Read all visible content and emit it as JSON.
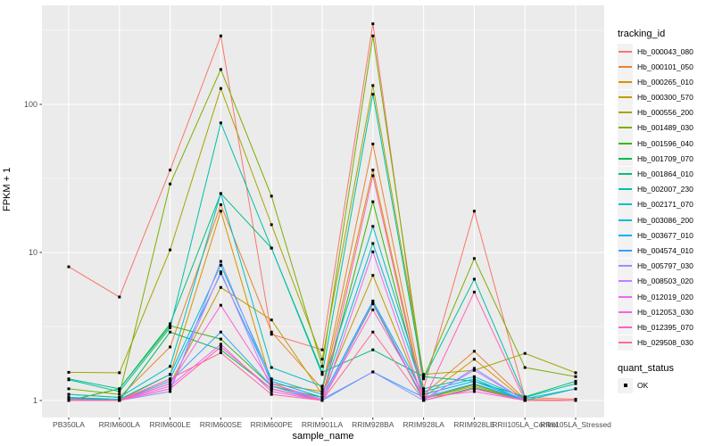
{
  "chart_data": {
    "type": "line",
    "xlabel": "sample_name",
    "ylabel": "FPKM + 1",
    "y_scale": "log10",
    "ylim": [
      0.74,
      480
    ],
    "grid": true,
    "panel_bg": "#EBEBEB",
    "grid_color": "#FFFFFF",
    "marker_color": "#000000",
    "tick_label_color": "#4D4D4D",
    "y_ticks": [
      {
        "label": "1",
        "value": 1
      },
      {
        "label": "10",
        "value": 10
      },
      {
        "label": "100",
        "value": 100
      }
    ],
    "y_minor_values": [
      3.162,
      31.62,
      316.2
    ],
    "categories": [
      "PB350LA",
      "RRIM600LA",
      "RRIM600LE",
      "RRIM600SE",
      "RRIM600PE",
      "RRIM901LA",
      "RRIM928BA",
      "RRIM928LA",
      "RRIM928LE",
      "RRII105LA_Control",
      "RRII105LA_Stressed"
    ],
    "legend_title": "tracking_id",
    "legend_position": "right",
    "point_legend": {
      "title": "quant_status",
      "items": [
        {
          "label": "OK"
        }
      ]
    },
    "series": [
      {
        "name": "Hb_000043_080",
        "color": "#F8766D",
        "values": [
          8,
          5,
          36,
          290,
          2.8,
          2.2,
          350,
          1.2,
          19,
          1.05,
          1.02
        ]
      },
      {
        "name": "Hb_000101_050",
        "color": "#EA8331",
        "values": [
          1.1,
          1.05,
          2.3,
          21,
          2.9,
          1.2,
          54,
          1.1,
          2.15,
          1.02,
          1.0
        ]
      },
      {
        "name": "Hb_000265_010",
        "color": "#D89000",
        "values": [
          1.05,
          1.0,
          1.5,
          19,
          1.3,
          1.15,
          36,
          1.05,
          1.9,
          1.0,
          1.0
        ]
      },
      {
        "name": "Hb_000300_570",
        "color": "#C09B00",
        "values": [
          1.0,
          1.0,
          1.3,
          5.8,
          3.5,
          1.1,
          7,
          1.03,
          1.25,
          1.0,
          1.0
        ]
      },
      {
        "name": "Hb_000556_200",
        "color": "#A3A500",
        "values": [
          1.55,
          1.54,
          10.4,
          128,
          15.4,
          1.9,
          134,
          1.5,
          1.6,
          2.08,
          1.54
        ]
      },
      {
        "name": "Hb_001489_030",
        "color": "#7CAE00",
        "values": [
          1.2,
          1.1,
          29,
          172,
          24,
          1.7,
          290,
          1.42,
          9.1,
          1.67,
          1.45
        ]
      },
      {
        "name": "Hb_001596_040",
        "color": "#39B600",
        "values": [
          1.0,
          1.2,
          3.2,
          2.6,
          1.25,
          1.05,
          22,
          1.03,
          1.28,
          1.0,
          1.0
        ]
      },
      {
        "name": "Hb_001709_070",
        "color": "#00BB4E",
        "values": [
          1.05,
          1.0,
          2.9,
          2.2,
          1.2,
          1.0,
          4.5,
          1.0,
          1.22,
          1.0,
          1.0
        ]
      },
      {
        "name": "Hb_001864_010",
        "color": "#00BF7D",
        "values": [
          1.4,
          1.2,
          3.3,
          25,
          10.7,
          1.55,
          2.2,
          1.45,
          1.35,
          1.06,
          1.35
        ]
      },
      {
        "name": "Hb_002007_230",
        "color": "#00C1A3",
        "values": [
          1.38,
          1.15,
          3.1,
          75,
          10.7,
          1.5,
          117,
          1.4,
          6.6,
          1.05,
          1.3
        ]
      },
      {
        "name": "Hb_002171_070",
        "color": "#00BFC4",
        "values": [
          1.1,
          1.05,
          1.7,
          25,
          1.67,
          1.25,
          15,
          1.2,
          1.45,
          1.03,
          1.2
        ]
      },
      {
        "name": "Hb_003086_200",
        "color": "#00BBDA",
        "values": [
          1.05,
          1.02,
          1.5,
          8.2,
          1.4,
          1.1,
          11.5,
          1.15,
          1.4,
          1.0,
          1.2
        ]
      },
      {
        "name": "Hb_003677_010",
        "color": "#00B0F6",
        "values": [
          1.03,
          1.0,
          1.4,
          7.2,
          1.35,
          1.05,
          4.7,
          1.1,
          1.35,
          1.0,
          1.0
        ]
      },
      {
        "name": "Hb_004574_010",
        "color": "#35A2FF",
        "values": [
          1.0,
          1.0,
          1.35,
          2.9,
          1.25,
          1.0,
          1.56,
          1.05,
          1.3,
          1.0,
          1.0
        ]
      },
      {
        "name": "Hb_005797_030",
        "color": "#9590FF",
        "values": [
          1.02,
          1.0,
          1.15,
          8.7,
          1.3,
          1.02,
          1.56,
          1.0,
          1.65,
          1.0,
          1.0
        ]
      },
      {
        "name": "Hb_008503_020",
        "color": "#C77CFF",
        "values": [
          1.0,
          1.0,
          1.2,
          7.4,
          1.2,
          1.0,
          4.6,
          1.02,
          1.6,
          1.0,
          1.0
        ]
      },
      {
        "name": "Hb_012019_020",
        "color": "#E76BF3",
        "values": [
          1.0,
          1.0,
          1.25,
          2.4,
          1.15,
          1.0,
          10.1,
          1.0,
          1.2,
          1.0,
          1.0
        ]
      },
      {
        "name": "Hb_012053_030",
        "color": "#FA62DB",
        "values": [
          1.0,
          1.0,
          1.3,
          4.4,
          1.3,
          1.0,
          4.1,
          1.05,
          1.15,
          1.0,
          1.0
        ]
      },
      {
        "name": "Hb_012395_070",
        "color": "#FF62BC",
        "values": [
          1.0,
          1.0,
          1.2,
          2.3,
          1.2,
          1.0,
          33,
          1.0,
          5.4,
          1.0,
          1.0
        ]
      },
      {
        "name": "Hb_029508_030",
        "color": "#FF6A98",
        "values": [
          1.02,
          1.0,
          1.4,
          2.1,
          1.1,
          1.0,
          2.9,
          1.0,
          1.2,
          1.0,
          1.0
        ]
      }
    ]
  }
}
